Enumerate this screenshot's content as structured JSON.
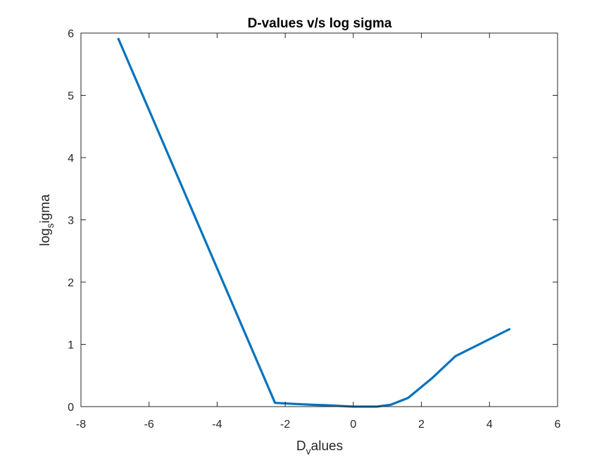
{
  "chart_data": {
    "type": "line",
    "title": "D-values v/s log sigma",
    "xlabel": {
      "base": "D",
      "sub": "v",
      "rest": "alues"
    },
    "ylabel": {
      "base": "log",
      "sub": "s",
      "rest": "igma"
    },
    "xlim": [
      -8,
      6
    ],
    "ylim": [
      0,
      6
    ],
    "xticks": [
      -8,
      -6,
      -4,
      -2,
      0,
      2,
      4,
      6
    ],
    "yticks": [
      0,
      1,
      2,
      3,
      4,
      5,
      6
    ],
    "grid": false,
    "legend": "none",
    "series": [
      {
        "color": "#0072BD",
        "x": [
          -6.91,
          -2.3,
          -1.61,
          -1.2,
          -0.69,
          -0.36,
          0.0,
          0.69,
          1.1,
          1.61,
          2.3,
          3.0,
          4.61
        ],
        "y": [
          5.92,
          0.06,
          0.04,
          0.03,
          0.02,
          0.01,
          0.0,
          0.0,
          0.03,
          0.14,
          0.45,
          0.81,
          1.25
        ]
      }
    ]
  }
}
